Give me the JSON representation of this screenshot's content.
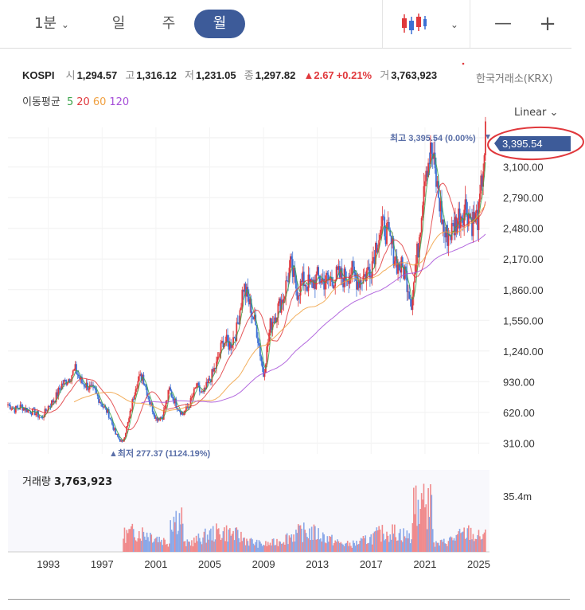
{
  "toolbar": {
    "interval_1m": "1분",
    "interval_day": "일",
    "interval_week": "주",
    "interval_month": "월",
    "chart_type_icon": "candlestick-icon",
    "zoom_out": "—",
    "zoom_in": "+"
  },
  "info": {
    "symbol": "KOSPI",
    "open_label": "시",
    "open": "1,294.57",
    "high_label": "고",
    "high": "1,316.12",
    "low_label": "저",
    "low": "1,231.05",
    "close_label": "종",
    "close": "1,297.82",
    "change": "▲2.67",
    "change_pct": "+0.21%",
    "volume_label": "거",
    "volume": "3,763,923",
    "exchange": "한국거래소(KRX)"
  },
  "moving_average": {
    "label": "이동평균",
    "periods": [
      "5",
      "20",
      "60",
      "120"
    ],
    "colors": [
      "#3aa34a",
      "#e0383c",
      "#f0a040",
      "#a64fd8"
    ]
  },
  "scale_mode": "Linear",
  "annotations": {
    "max": "최고 3,395.54 (0.00%)",
    "min": "▲최저 277.37 (1124.19%)",
    "current_price": "3,395.54"
  },
  "volume_panel": {
    "label": "거래량",
    "value": "3,763,923",
    "axis_label": "35.4m"
  },
  "colors": {
    "up": "#e0383c",
    "down": "#3b6fd4",
    "accent": "#3d5b99",
    "highlight_circle": "#e0383c"
  },
  "chart_data": {
    "type": "candlestick",
    "period": "monthly",
    "y_ticks": [
      310,
      620,
      930,
      1240,
      1550,
      1860,
      2170,
      2480,
      2790,
      3100
    ],
    "y_tick_labels": [
      "310.00",
      "620.00",
      "930.00",
      "1,240.00",
      "1,550.00",
      "1,860.00",
      "2,170.00",
      "2,480.00",
      "2,790.00",
      "3,100.00"
    ],
    "ylim": [
      200,
      3500
    ],
    "x_ticks": [
      1993,
      1997,
      2001,
      2005,
      2009,
      2013,
      2017,
      2021,
      2025
    ],
    "xlim": [
      1990.0,
      2025.8
    ],
    "close_series": [
      [
        1990.0,
        700
      ],
      [
        1990.5,
        650
      ],
      [
        1991.0,
        680
      ],
      [
        1991.5,
        640
      ],
      [
        1992.0,
        620
      ],
      [
        1992.5,
        560
      ],
      [
        1993.0,
        680
      ],
      [
        1993.5,
        760
      ],
      [
        1994.0,
        900
      ],
      [
        1994.5,
        960
      ],
      [
        1995.0,
        1050
      ],
      [
        1995.5,
        920
      ],
      [
        1996.0,
        880
      ],
      [
        1996.5,
        820
      ],
      [
        1997.0,
        700
      ],
      [
        1997.5,
        600
      ],
      [
        1998.0,
        400
      ],
      [
        1998.5,
        310
      ],
      [
        1999.0,
        550
      ],
      [
        1999.5,
        900
      ],
      [
        2000.0,
        1000
      ],
      [
        2000.5,
        750
      ],
      [
        2001.0,
        560
      ],
      [
        2001.5,
        580
      ],
      [
        2002.0,
        850
      ],
      [
        2002.5,
        700
      ],
      [
        2003.0,
        600
      ],
      [
        2003.5,
        700
      ],
      [
        2004.0,
        880
      ],
      [
        2004.5,
        800
      ],
      [
        2005.0,
        950
      ],
      [
        2005.5,
        1100
      ],
      [
        2006.0,
        1350
      ],
      [
        2006.5,
        1300
      ],
      [
        2007.0,
        1450
      ],
      [
        2007.5,
        1900
      ],
      [
        2008.0,
        1700
      ],
      [
        2008.5,
        1450
      ],
      [
        2009.0,
        1000
      ],
      [
        2009.5,
        1500
      ],
      [
        2010.0,
        1650
      ],
      [
        2010.5,
        1800
      ],
      [
        2011.0,
        2100
      ],
      [
        2011.5,
        1850
      ],
      [
        2012.0,
        1950
      ],
      [
        2012.5,
        1900
      ],
      [
        2013.0,
        1980
      ],
      [
        2013.5,
        1950
      ],
      [
        2014.0,
        1960
      ],
      [
        2014.5,
        2000
      ],
      [
        2015.0,
        1980
      ],
      [
        2015.5,
        2050
      ],
      [
        2016.0,
        1950
      ],
      [
        2016.5,
        2000
      ],
      [
        2017.0,
        2100
      ],
      [
        2017.5,
        2400
      ],
      [
        2018.0,
        2500
      ],
      [
        2018.5,
        2300
      ],
      [
        2019.0,
        2100
      ],
      [
        2019.5,
        2050
      ],
      [
        2020.0,
        1750
      ],
      [
        2020.5,
        2300
      ],
      [
        2021.0,
        3100
      ],
      [
        2021.5,
        3250
      ],
      [
        2022.0,
        2800
      ],
      [
        2022.5,
        2400
      ],
      [
        2023.0,
        2450
      ],
      [
        2023.5,
        2600
      ],
      [
        2024.0,
        2700
      ],
      [
        2024.5,
        2550
      ],
      [
        2025.0,
        2600
      ],
      [
        2025.5,
        3395
      ]
    ],
    "volume_max": 35400000
  }
}
